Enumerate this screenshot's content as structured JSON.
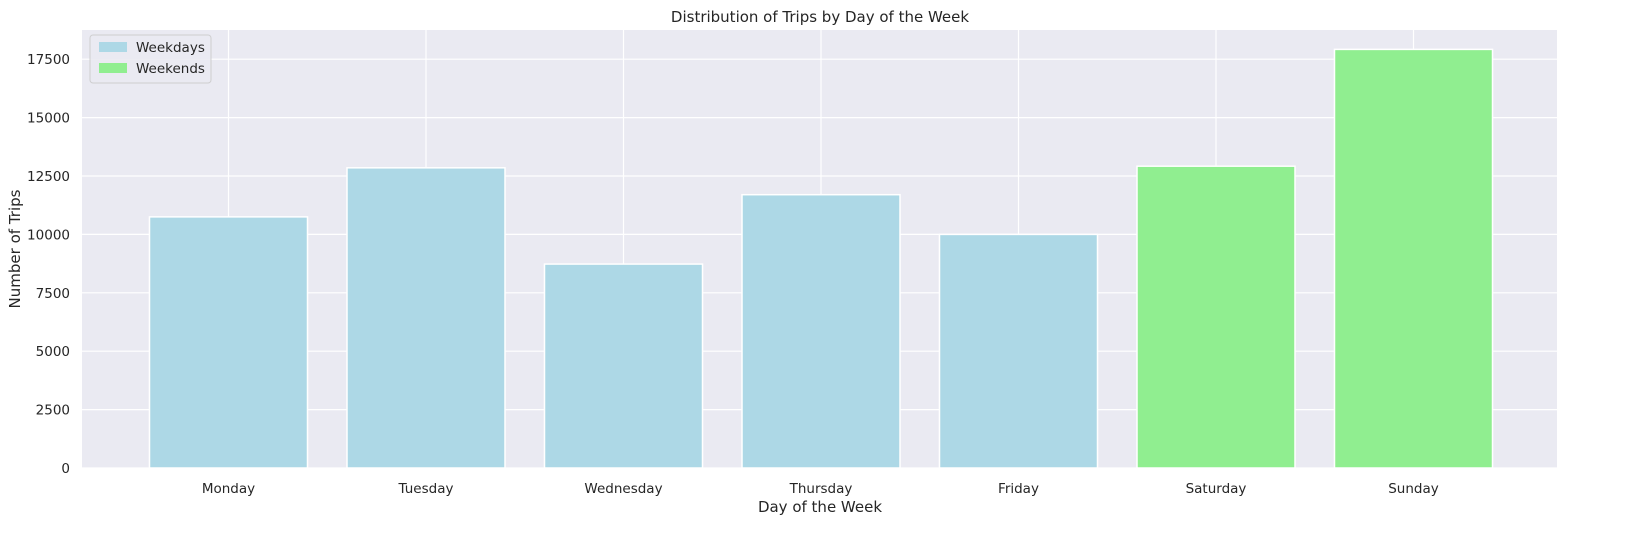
{
  "chart_data": {
    "type": "bar",
    "title": "Distribution of Trips by Day of the Week",
    "xlabel": "Day of the Week",
    "ylabel": "Number of Trips",
    "categories": [
      "Monday",
      "Tuesday",
      "Wednesday",
      "Thursday",
      "Friday",
      "Saturday",
      "Sunday"
    ],
    "values": [
      10750,
      12850,
      8730,
      11700,
      10000,
      12920,
      17920
    ],
    "groups": [
      "Weekdays",
      "Weekdays",
      "Weekdays",
      "Weekdays",
      "Weekdays",
      "Weekends",
      "Weekends"
    ],
    "ylim": [
      0,
      18750
    ],
    "yticks": [
      0,
      2500,
      5000,
      7500,
      10000,
      12500,
      15000,
      17500
    ],
    "grid": true,
    "legend": {
      "placement": "top-left",
      "entries": [
        {
          "name": "Weekdays",
          "color": "#add8e6"
        },
        {
          "name": "Weekends",
          "color": "#90ee90"
        }
      ]
    },
    "colors": {
      "background": "#eaeaf2",
      "grid": "#ffffff",
      "text": "#262626"
    }
  }
}
